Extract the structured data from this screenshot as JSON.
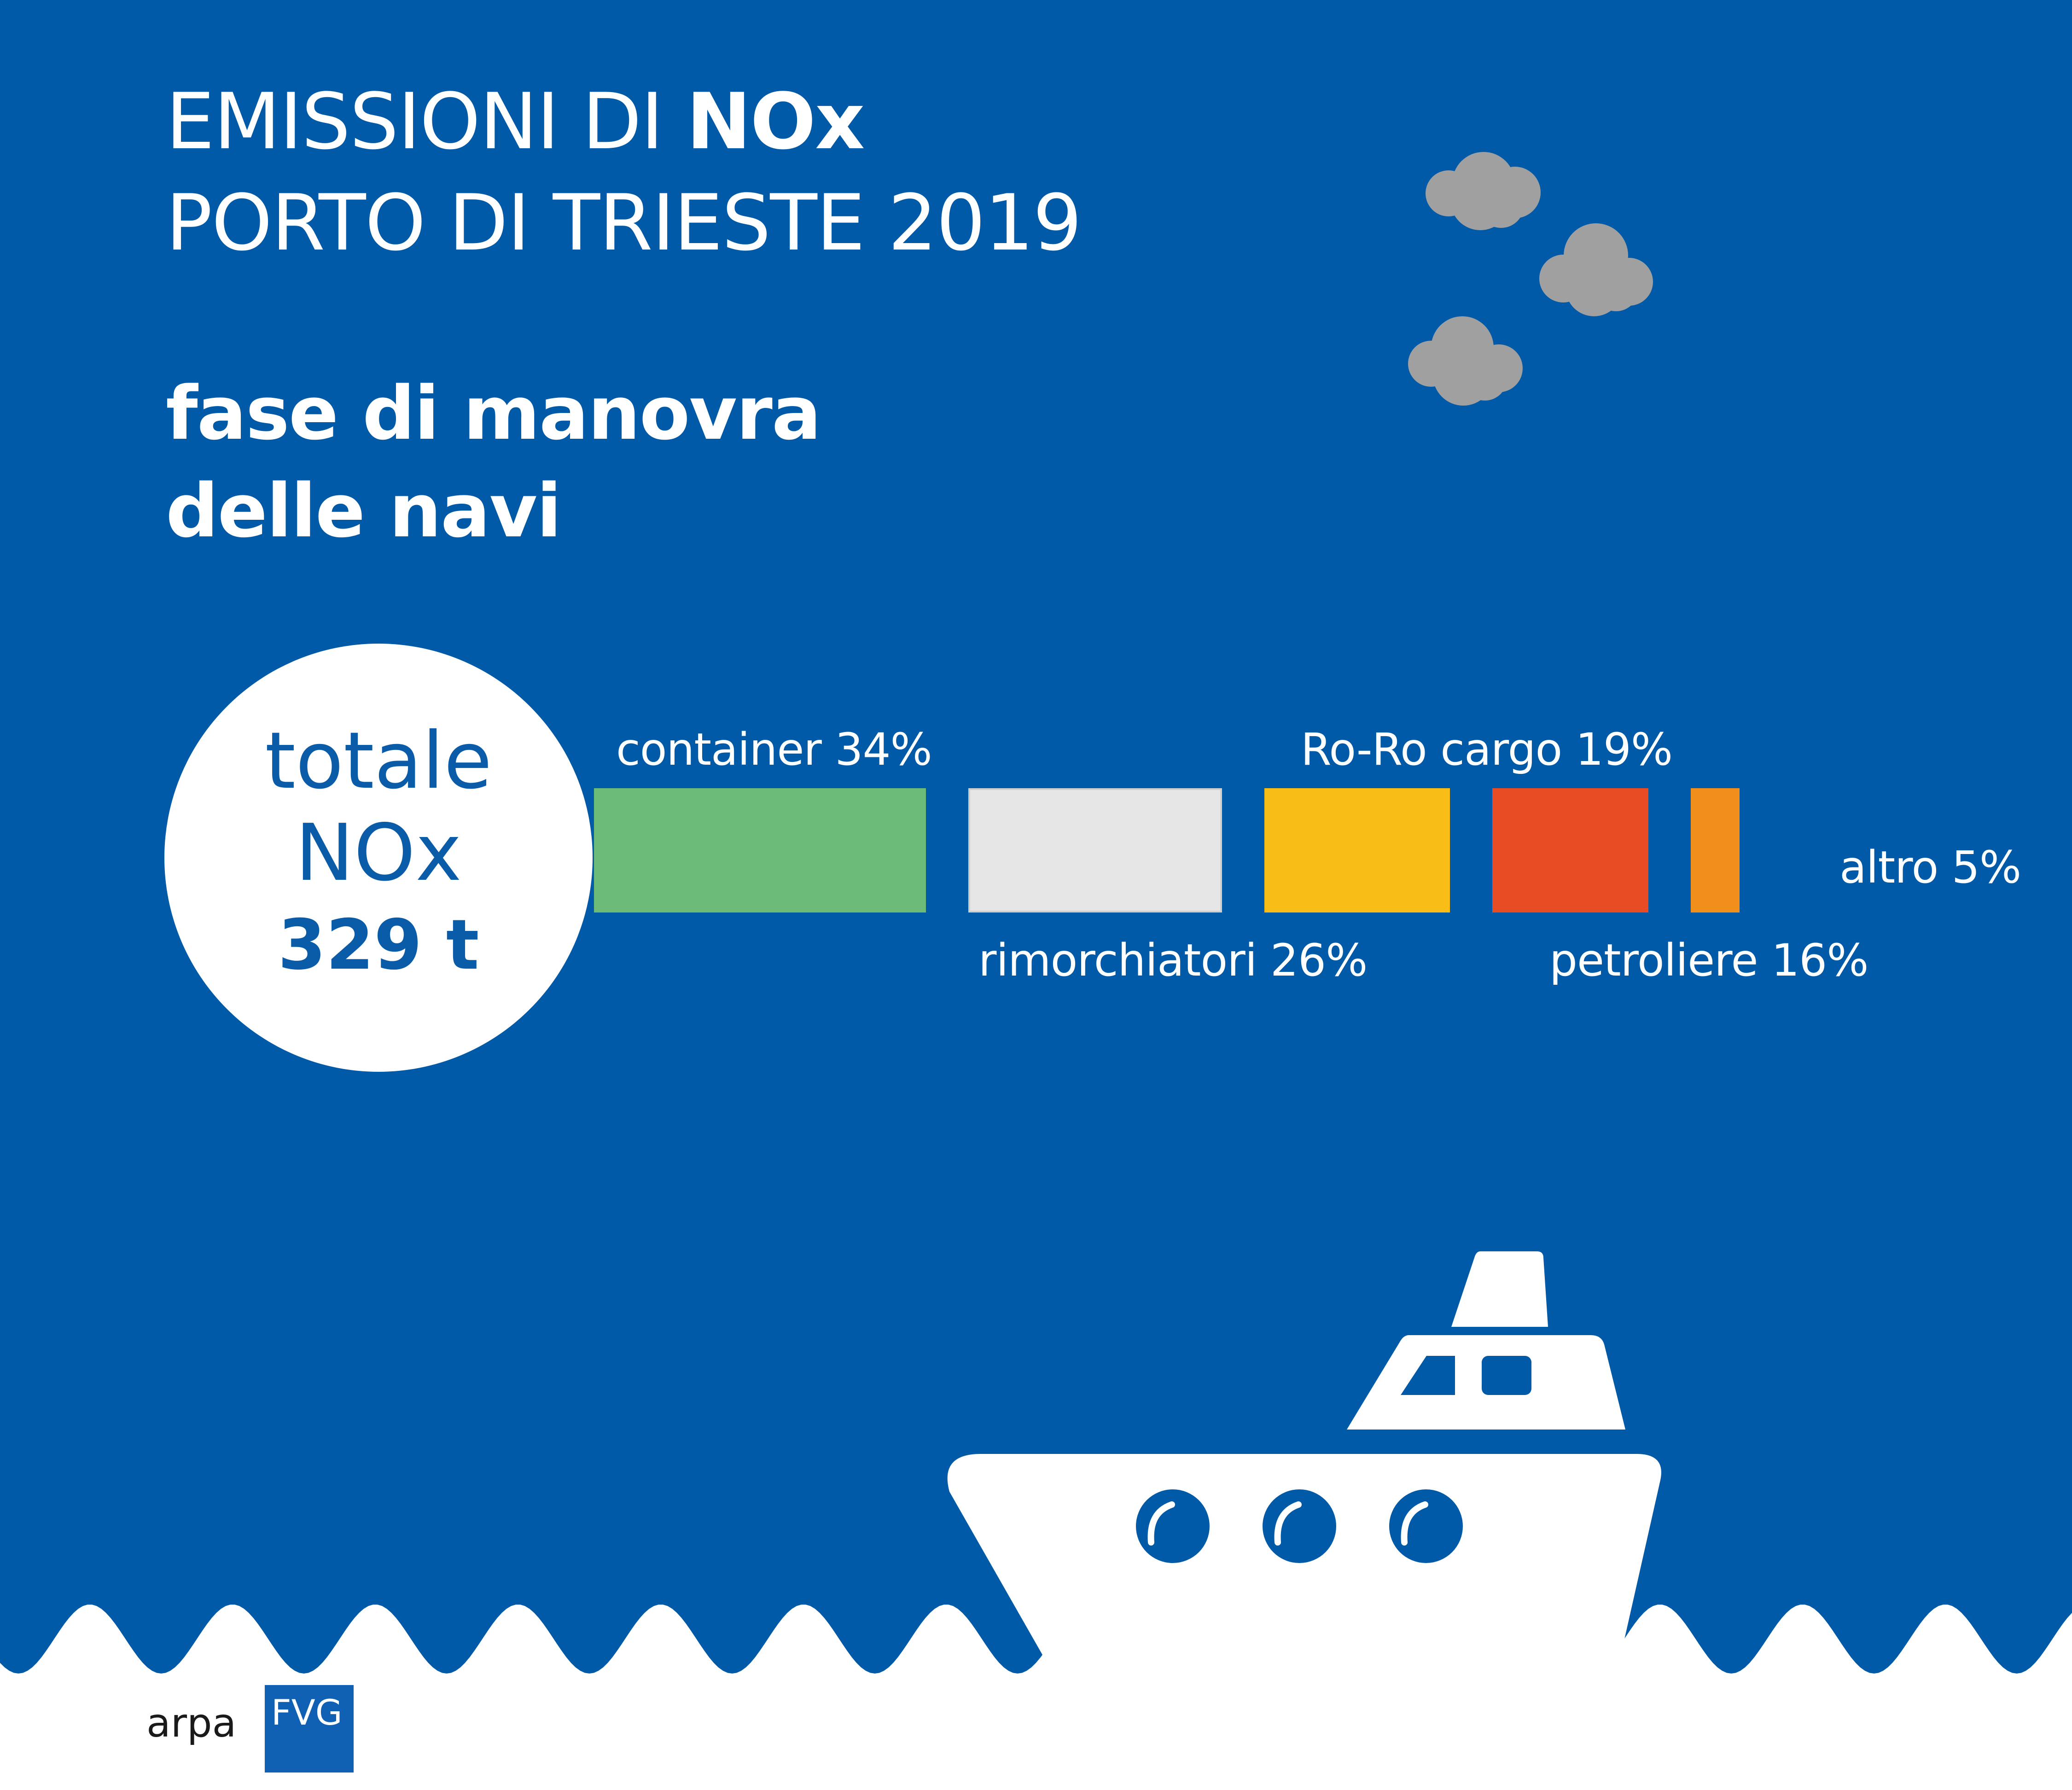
{
  "title": {
    "line1_prefix": "EMISSIONI DI",
    "line1_bold": "NOx",
    "line2": "PORTO DI TRIESTE 2019"
  },
  "subtitle": {
    "line1": "fase di manovra",
    "line2": "delle navi"
  },
  "total": {
    "label1": "totale",
    "label2": "NOx",
    "value": "329 t"
  },
  "colors": {
    "background": "#015aa8",
    "cloud": "#a0a0a0",
    "container": "#6dbb78",
    "rimorchiatori": "#e6e6e6",
    "roro": "#f9bd18",
    "petroliere": "#e84c25",
    "altro": "#f18f1c"
  },
  "chart_data": {
    "type": "bar",
    "orientation": "horizontal-segmented",
    "series": [
      {
        "name": "container",
        "value": 34,
        "label": "container 34%",
        "color": "#6dbb78"
      },
      {
        "name": "rimorchiatori",
        "value": 26,
        "label": "rimorchiatori 26%",
        "color": "#e6e6e6"
      },
      {
        "name": "Ro-Ro cargo",
        "value": 19,
        "label": "Ro-Ro cargo 19%",
        "color": "#f9bd18"
      },
      {
        "name": "petroliere",
        "value": 16,
        "label": "petroliere 16%",
        "color": "#e84c25"
      },
      {
        "name": "altro",
        "value": 5,
        "label": "altro 5%",
        "color": "#f18f1c"
      }
    ],
    "unit": "%",
    "total": 329,
    "total_unit": "t"
  },
  "icons": [
    "cloud-icon",
    "cloud-icon",
    "cloud-icon",
    "ship-icon",
    "wave-shape"
  ],
  "logo": {
    "text": "arpa",
    "box_text": "FVG"
  }
}
